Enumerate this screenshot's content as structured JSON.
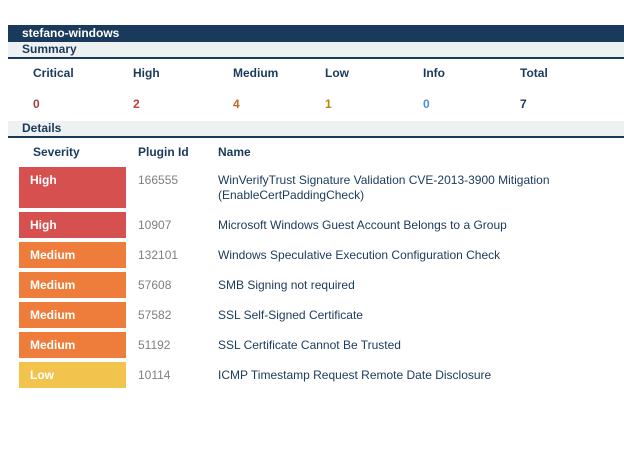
{
  "host": {
    "title": "stefano-windows"
  },
  "colors": {
    "navy": "#1a3a5c",
    "section_bar_bg": "#eef1f1",
    "badge_high": "#d6504f",
    "badge_medium": "#ee7d3b",
    "badge_low": "#f2c44e",
    "plugin_id_text": "#7f7f7f"
  },
  "summary": {
    "section_label": "Summary",
    "columns": [
      {
        "label": "Critical",
        "value": "0",
        "color": "#a33e3e"
      },
      {
        "label": "High",
        "value": "2",
        "color": "#c63b3b"
      },
      {
        "label": "Medium",
        "value": "4",
        "color": "#c2661f"
      },
      {
        "label": "Low",
        "value": "1",
        "color": "#b8870f"
      },
      {
        "label": "Info",
        "value": "0",
        "color": "#4a90d9"
      },
      {
        "label": "Total",
        "value": "7",
        "color": "#1a3a5c"
      }
    ]
  },
  "details": {
    "section_label": "Details",
    "columns": {
      "severity": "Severity",
      "plugin_id": "Plugin Id",
      "name": "Name"
    },
    "rows": [
      {
        "severity": "High",
        "severity_color": "#d6504f",
        "plugin_id": "166555",
        "name": "WinVerifyTrust Signature Validation CVE-2013-3900 Mitigation (EnableCertPaddingCheck)"
      },
      {
        "severity": "High",
        "severity_color": "#d6504f",
        "plugin_id": "10907",
        "name": "Microsoft Windows Guest Account Belongs to a Group"
      },
      {
        "severity": "Medium",
        "severity_color": "#ee7d3b",
        "plugin_id": "132101",
        "name": "Windows Speculative Execution Configuration Check"
      },
      {
        "severity": "Medium",
        "severity_color": "#ee7d3b",
        "plugin_id": "57608",
        "name": "SMB Signing not required"
      },
      {
        "severity": "Medium",
        "severity_color": "#ee7d3b",
        "plugin_id": "57582",
        "name": "SSL Self-Signed Certificate"
      },
      {
        "severity": "Medium",
        "severity_color": "#ee7d3b",
        "plugin_id": "51192",
        "name": "SSL Certificate Cannot Be Trusted"
      },
      {
        "severity": "Low",
        "severity_color": "#f2c44e",
        "plugin_id": "10114",
        "name": "ICMP Timestamp Request Remote Date Disclosure"
      }
    ]
  }
}
